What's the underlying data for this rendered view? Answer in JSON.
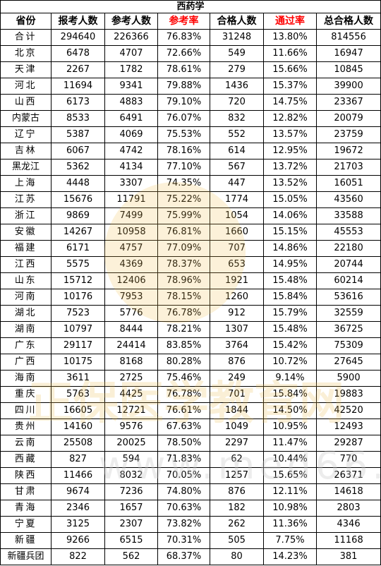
{
  "title": "西药学",
  "headers": [
    "省份",
    "报考人数",
    "参考人数",
    "参考率",
    "合格人数",
    "通过率",
    "总合格人数"
  ],
  "red_headers": [
    3,
    5
  ],
  "rows": [
    [
      "合计",
      "294640",
      "226366",
      "76.83%",
      "31248",
      "13.80%",
      "814556"
    ],
    [
      "北京",
      "6478",
      "4707",
      "72.66%",
      "549",
      "11.66%",
      "16947"
    ],
    [
      "天津",
      "2267",
      "1782",
      "78.61%",
      "279",
      "15.66%",
      "10845"
    ],
    [
      "河北",
      "11694",
      "9341",
      "79.88%",
      "1436",
      "15.37%",
      "39900"
    ],
    [
      "山西",
      "6173",
      "4883",
      "79.10%",
      "720",
      "14.75%",
      "23367"
    ],
    [
      "内蒙古",
      "8533",
      "6491",
      "76.07%",
      "832",
      "12.82%",
      "20079"
    ],
    [
      "辽宁",
      "5387",
      "4069",
      "75.53%",
      "552",
      "13.57%",
      "23759"
    ],
    [
      "吉林",
      "6067",
      "4742",
      "78.16%",
      "614",
      "12.95%",
      "19672"
    ],
    [
      "黑龙江",
      "5362",
      "4134",
      "77.10%",
      "567",
      "13.72%",
      "21703"
    ],
    [
      "上海",
      "4448",
      "3307",
      "74.35%",
      "447",
      "13.52%",
      "16051"
    ],
    [
      "江苏",
      "15676",
      "11791",
      "75.22%",
      "1774",
      "15.05%",
      "43560"
    ],
    [
      "浙江",
      "9869",
      "7499",
      "75.99%",
      "1054",
      "14.06%",
      "33588"
    ],
    [
      "安徽",
      "14267",
      "10958",
      "76.81%",
      "1660",
      "15.15%",
      "45553"
    ],
    [
      "福建",
      "6171",
      "4757",
      "77.09%",
      "707",
      "14.86%",
      "22180"
    ],
    [
      "江西",
      "5575",
      "4369",
      "78.37%",
      "653",
      "14.95%",
      "20744"
    ],
    [
      "山东",
      "15712",
      "12406",
      "78.96%",
      "1921",
      "15.48%",
      "60214"
    ],
    [
      "河南",
      "10176",
      "7953",
      "78.15%",
      "1260",
      "15.84%",
      "53616"
    ],
    [
      "湖北",
      "7523",
      "5776",
      "76.78%",
      "912",
      "15.79%",
      "32559"
    ],
    [
      "湖南",
      "10797",
      "8444",
      "78.21%",
      "1307",
      "15.48%",
      "36725"
    ],
    [
      "广东",
      "29117",
      "24414",
      "83.85%",
      "3764",
      "15.42%",
      "75309"
    ],
    [
      "广西",
      "10175",
      "8168",
      "80.28%",
      "876",
      "10.72%",
      "27645"
    ],
    [
      "海南",
      "3611",
      "2725",
      "75.46%",
      "249",
      "9.14%",
      "5900"
    ],
    [
      "重庆",
      "5763",
      "4425",
      "76.78%",
      "701",
      "15.84%",
      "19883"
    ],
    [
      "四川",
      "16605",
      "12721",
      "76.61%",
      "1844",
      "14.50%",
      "42520"
    ],
    [
      "贵州",
      "14160",
      "9576",
      "67.63%",
      "1049",
      "10.95%",
      "12493"
    ],
    [
      "云南",
      "25508",
      "20025",
      "78.50%",
      "2297",
      "11.47%",
      "29287"
    ],
    [
      "西藏",
      "827",
      "594",
      "71.83%",
      "62",
      "10.44%",
      "770"
    ],
    [
      "陕西",
      "11466",
      "8032",
      "70.05%",
      "1257",
      "15.65%",
      "26371"
    ],
    [
      "甘肃",
      "9674",
      "7236",
      "74.80%",
      "876",
      "12.11%",
      "14618"
    ],
    [
      "青海",
      "2346",
      "1657",
      "70.63%",
      "182",
      "10.98%",
      "2803"
    ],
    [
      "宁夏",
      "3125",
      "2307",
      "73.82%",
      "262",
      "11.36%",
      "4346"
    ],
    [
      "新疆",
      "9266",
      "6515",
      "70.31%",
      "505",
      "7.75%",
      "11168"
    ],
    [
      "新疆兵团",
      "822",
      "562",
      "68.37%",
      "80",
      "14.23%",
      "381"
    ]
  ],
  "watermark": {
    "text": "正保医学教育网",
    "url": "www.med66.com"
  },
  "colors": {
    "accent_red": "#ff0000",
    "watermark": "#e6b446"
  }
}
